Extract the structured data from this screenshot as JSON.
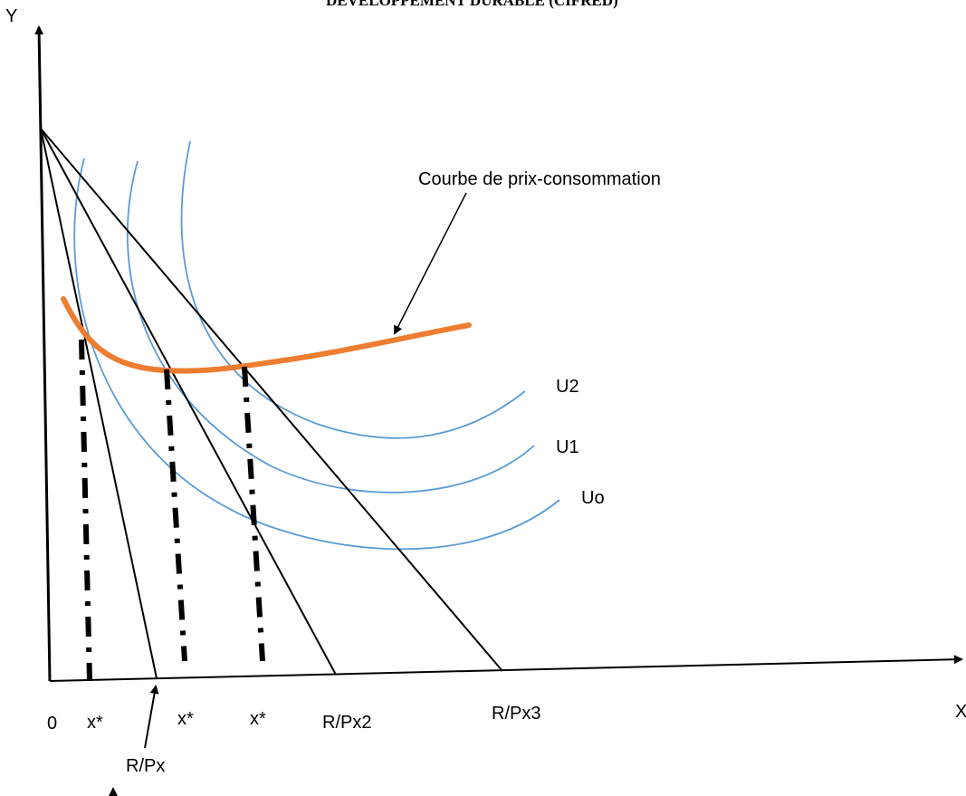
{
  "header": {
    "text": "DEVELOPPEMENT DURABLE (CIFRED)"
  },
  "axes": {
    "y_label": "Y",
    "x_label": "X",
    "origin_label": "0"
  },
  "curve_label": "Courbe de prix-consommation",
  "indifference_curves": [
    "U2",
    "U1",
    "Uo"
  ],
  "budget_intercepts": [
    "R/Px",
    "R/Px2",
    "R/Px3"
  ],
  "x_star_labels": [
    "x*",
    "x*",
    "x*"
  ],
  "colors": {
    "indifference": "#5b9bd5",
    "price_consumption": "#ed7d31",
    "lines": "#000000"
  }
}
